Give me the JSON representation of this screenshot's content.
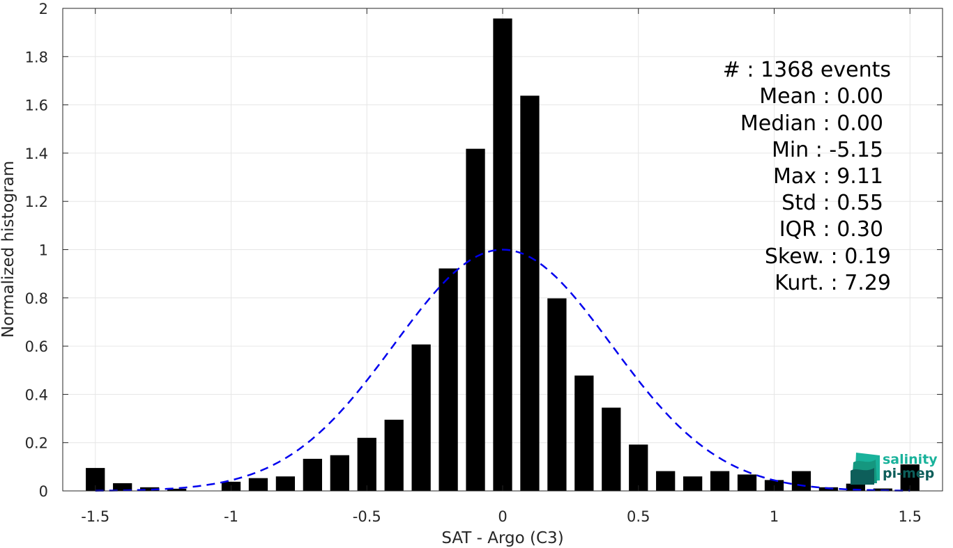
{
  "chart_data": {
    "type": "bar",
    "xlabel": "SAT - Argo (C3)",
    "ylabel": "Normalized histogram",
    "xlim": [
      -1.62,
      1.62
    ],
    "ylim": [
      0,
      2
    ],
    "grid": true,
    "x_ticks": [
      -1.5,
      -1,
      -0.5,
      0,
      0.5,
      1,
      1.5
    ],
    "x_tick_labels": [
      "-1.5",
      "-1",
      "-0.5",
      "0",
      "0.5",
      "1",
      "1.5"
    ],
    "y_ticks": [
      0,
      0.2,
      0.4,
      0.6,
      0.8,
      1,
      1.2,
      1.4,
      1.6,
      1.8,
      2
    ],
    "y_tick_labels": [
      "0",
      "0.2",
      "0.4",
      "0.6",
      "0.8",
      "1",
      "1.2",
      "1.4",
      "1.6",
      "1.8",
      "2"
    ],
    "bar_color": "#000000",
    "bar_width": 0.07,
    "x": [
      -1.5,
      -1.4,
      -1.3,
      -1.2,
      -1.1,
      -1.0,
      -0.9,
      -0.8,
      -0.7,
      -0.6,
      -0.5,
      -0.4,
      -0.3,
      -0.2,
      -0.1,
      0.0,
      0.1,
      0.2,
      0.3,
      0.4,
      0.5,
      0.6,
      0.7,
      0.8,
      0.9,
      1.0,
      1.1,
      1.2,
      1.3,
      1.4,
      1.5
    ],
    "values": [
      0.095,
      0.032,
      0.015,
      0.009,
      0.0,
      0.038,
      0.053,
      0.06,
      0.133,
      0.148,
      0.22,
      0.295,
      0.607,
      0.922,
      1.418,
      1.958,
      1.638,
      0.798,
      0.478,
      0.345,
      0.192,
      0.082,
      0.06,
      0.082,
      0.068,
      0.045,
      0.082,
      0.015,
      0.03,
      0.01,
      0.11
    ],
    "fit_curve": {
      "style": "dashed",
      "color": "#0000ee",
      "mean": 0.0,
      "std": 0.4,
      "peak": 1.0,
      "x_range": [
        -1.5,
        1.5
      ]
    }
  },
  "stats": [
    {
      "label": "#  ",
      "value": "1368 events"
    },
    {
      "label": "Mean ",
      "value": "0.00"
    },
    {
      "label": "Median ",
      "value": "0.00"
    },
    {
      "label": "Min ",
      "value": "-5.15"
    },
    {
      "label": "Max ",
      "value": "9.11"
    },
    {
      "label": "Std ",
      "value": "0.55"
    },
    {
      "label": "IQR ",
      "value": "0.30"
    },
    {
      "label": "Skew. ",
      "value": "0.19"
    },
    {
      "label": "Kurt. ",
      "value": "7.29"
    }
  ],
  "logo": {
    "line1": "salinity",
    "line2": "pi-mep",
    "color1": "#19b29b",
    "color2": "#0d5e5a"
  }
}
